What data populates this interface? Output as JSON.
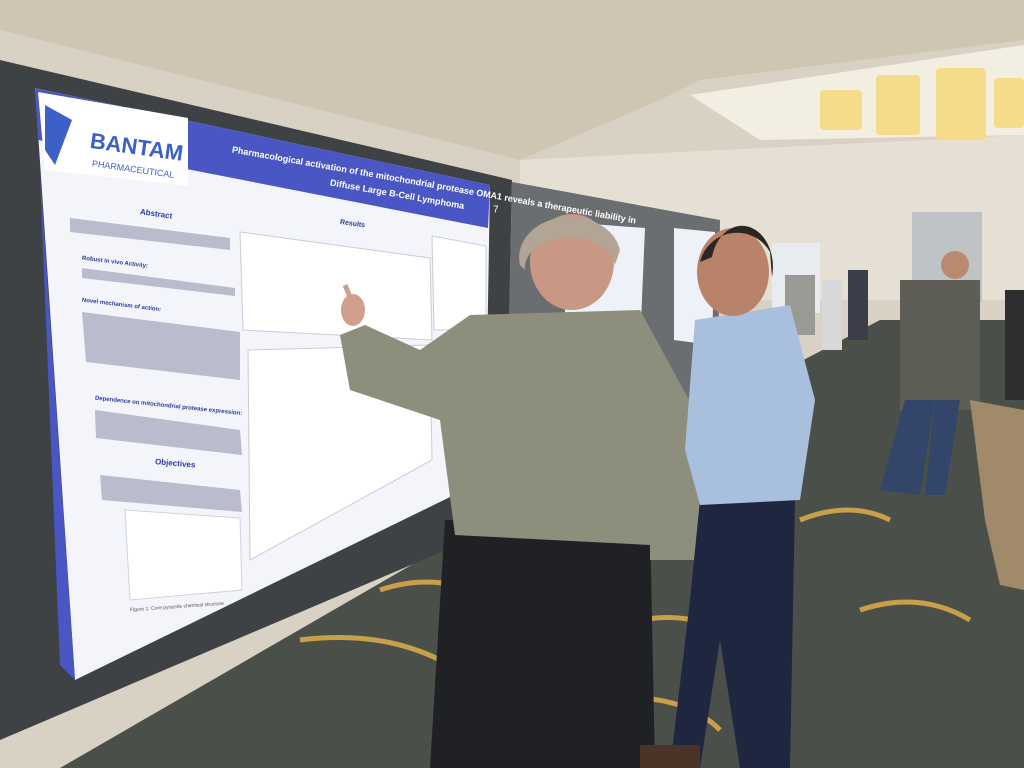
{
  "poster": {
    "logo": {
      "name": "BANTAM",
      "tagline": "PHARMACEUTICAL"
    },
    "board_number": "7",
    "title": [
      "Pharmacological activation of the mitochondrial protease OMA1 reveals a therapeutic liability in",
      "Diffuse Large B-Cell Lymphoma"
    ],
    "sections": [
      "Abstract",
      "Results",
      "Objectives"
    ],
    "abstract_points": [
      "Robust in vivo Activity:",
      "Novel mechanism of action:",
      "Dependence on mitochondrial protease expression:"
    ],
    "figure_caption": "Figure 1: Core pyrazole chemical structure"
  }
}
